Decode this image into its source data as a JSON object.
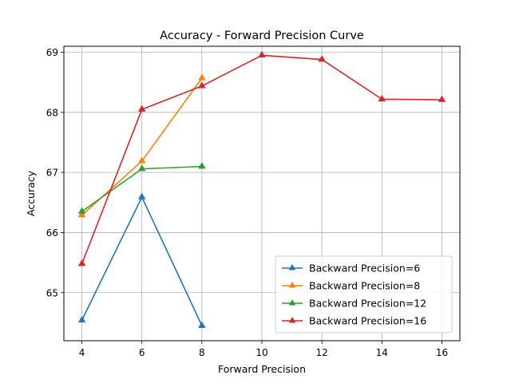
{
  "chart_data": {
    "type": "line",
    "title": "Accuracy - Forward Precision Curve",
    "xlabel": "Forward Precision",
    "ylabel": "Accuracy",
    "xlim": [
      3.4,
      16.6
    ],
    "ylim": [
      64.2,
      69.1
    ],
    "xticks": [
      4,
      6,
      8,
      10,
      12,
      14,
      16
    ],
    "yticks": [
      65,
      66,
      67,
      68,
      69
    ],
    "grid": true,
    "legend_position": "lower-right",
    "marker": "triangle-up",
    "series": [
      {
        "name": "Backward Precision=6",
        "color": "#1f77b4",
        "x": [
          4,
          6,
          8
        ],
        "y": [
          64.54,
          66.59,
          64.45
        ]
      },
      {
        "name": "Backward Precision=8",
        "color": "#ff7f0e",
        "x": [
          4,
          6,
          8
        ],
        "y": [
          66.29,
          67.19,
          68.57
        ]
      },
      {
        "name": "Backward Precision=12",
        "color": "#2ca02c",
        "x": [
          4,
          6,
          8
        ],
        "y": [
          66.35,
          67.06,
          67.1
        ]
      },
      {
        "name": "Backward Precision=16",
        "color": "#d62728",
        "x": [
          4,
          6,
          8,
          10,
          12,
          14,
          16
        ],
        "y": [
          65.48,
          68.05,
          68.44,
          68.95,
          68.88,
          68.22,
          68.21
        ]
      }
    ]
  }
}
